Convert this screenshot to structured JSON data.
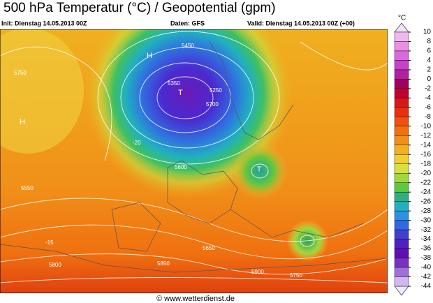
{
  "header": {
    "title": "500 hPa Temperatur (°C) / Geopotential (gpm)",
    "init": "Init: Dienstag 14.05.2013 00Z",
    "source": "Daten: GFS",
    "valid": "Valid: Dienstag 14.05.2013 00Z (+00)"
  },
  "colorbar": {
    "unit": "°C",
    "levels": [
      10,
      8,
      6,
      4,
      2,
      0,
      -2,
      -4,
      -6,
      -8,
      -10,
      -12,
      -14,
      -16,
      -18,
      -20,
      -22,
      -24,
      -26,
      -28,
      -30,
      -32,
      -34,
      -36,
      -38,
      -40,
      -42,
      -44
    ]
  },
  "map": {
    "contour_labels": [
      "5450",
      "5700",
      "5750",
      "5350",
      "5250",
      "5600",
      "5650",
      "5800",
      "5850",
      "5900",
      "5750",
      "5550",
      "T",
      "T",
      "H",
      "H",
      "-15",
      "-20"
    ]
  },
  "footer": "© www.wetterdienst.de"
}
